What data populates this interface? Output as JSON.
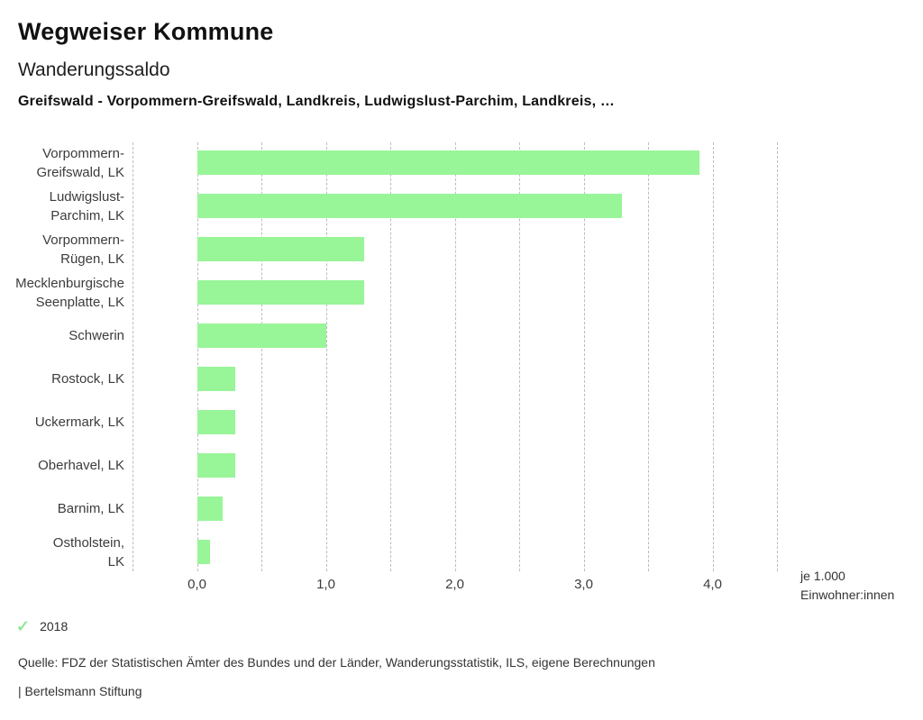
{
  "header": {
    "app_title": "Wegweiser Kommune",
    "chart_title": "Wanderungssaldo",
    "selection_line": "Greifswald - Vorpommern-Greifswald, Landkreis, Ludwigslust-Parchim, Landkreis, …"
  },
  "chart_data": {
    "type": "bar",
    "orientation": "horizontal",
    "title": "Wanderungssaldo",
    "categories": [
      "Vorpommern-Greifswald, LK",
      "Ludwigslust-Parchim, LK",
      "Vorpommern-Rügen, LK",
      "Mecklenburgische Seenplatte, LK",
      "Schwerin",
      "Rostock, LK",
      "Uckermark, LK",
      "Oberhavel, LK",
      "Barnim, LK",
      "Ostholstein, LK"
    ],
    "category_lines": [
      [
        "Vorpommern-",
        "Greifswald, LK"
      ],
      [
        "Ludwigslust-",
        "Parchim, LK"
      ],
      [
        "Vorpommern-",
        "Rügen, LK"
      ],
      [
        "Mecklenburgische",
        "Seenplatte, LK"
      ],
      [
        "Schwerin"
      ],
      [
        "Rostock, LK"
      ],
      [
        "Uckermark, LK"
      ],
      [
        "Oberhavel, LK"
      ],
      [
        "Barnim, LK"
      ],
      [
        "Ostholstein,",
        "LK"
      ]
    ],
    "values": [
      3.9,
      3.3,
      1.3,
      1.3,
      1.0,
      0.3,
      0.3,
      0.3,
      0.2,
      0.1
    ],
    "x_ticks": [
      "0,0",
      "1,0",
      "2,0",
      "3,0",
      "4,0"
    ],
    "x_tick_values": [
      0,
      1,
      2,
      3,
      4
    ],
    "xlim": [
      -0.5,
      4.5
    ],
    "gridline_step": 0.5,
    "grid": true,
    "unit_label_lines": [
      "je 1.000",
      "Einwohner:innen"
    ],
    "bar_color": "#98f598",
    "grid_color": "#bcbcbc"
  },
  "footer": {
    "year": "2018",
    "check_glyph": "✓",
    "check_color": "#93e793",
    "source": "Quelle: FDZ der Statistischen Ämter des Bundes und der Länder, Wanderungsstatistik, ILS, eigene Berechnungen",
    "branding": "| Bertelsmann Stiftung"
  }
}
